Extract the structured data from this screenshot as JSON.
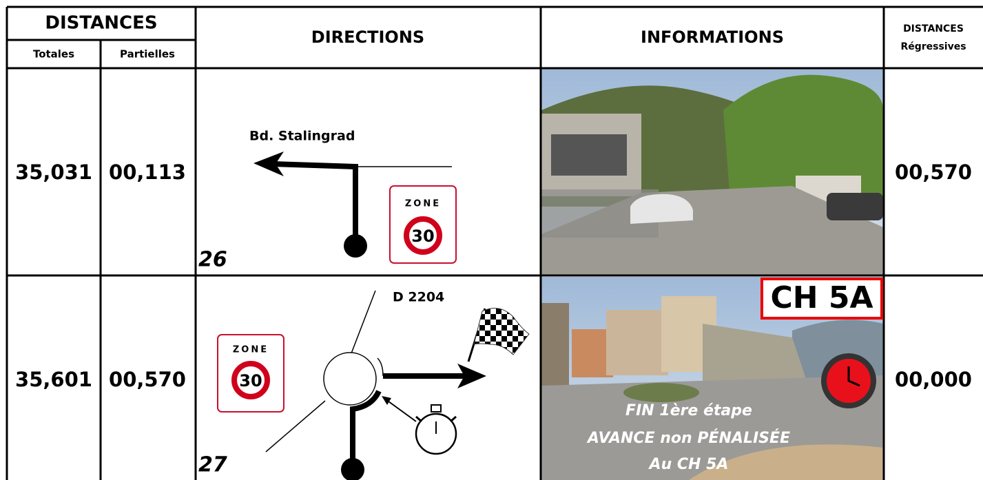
{
  "header": {
    "distances": "DISTANCES",
    "totales": "Totales",
    "partielles": "Partielles",
    "directions": "DIRECTIONS",
    "informations": "INFORMATIONS",
    "distances_regressives": "DISTANCES",
    "regressives": "Régressives"
  },
  "rows": [
    {
      "totale": "35,031",
      "partielle": "00,113",
      "number": "26",
      "road": "Bd. Stalingrad",
      "sign": {
        "zone": "ZONE",
        "limit": "30"
      },
      "regressive": "00,570"
    },
    {
      "totale": "35,601",
      "partielle": "00,570",
      "number": "27",
      "road": "D 2204",
      "sign": {
        "zone": "ZONE",
        "limit": "30"
      },
      "badge": "CH 5A",
      "notes": [
        "FIN  1ère étape",
        "AVANCE  non  PÉNALISÉE",
        "Au  CH  5A"
      ],
      "regressive": "00,000"
    }
  ]
}
